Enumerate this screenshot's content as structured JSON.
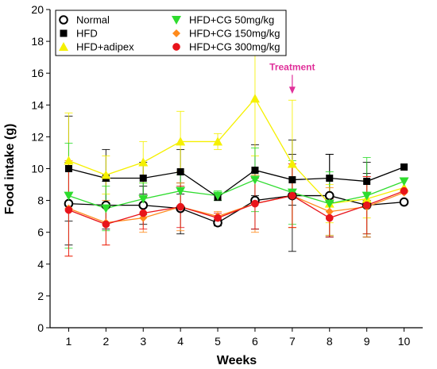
{
  "chart_data": {
    "type": "line",
    "xlabel": "Weeks",
    "ylabel": "Food intake (g)",
    "x": [
      1,
      2,
      3,
      4,
      5,
      6,
      7,
      8,
      9,
      10
    ],
    "x_ticks": [
      "1",
      "2",
      "3",
      "4",
      "5",
      "6",
      "7",
      "8",
      "9",
      "10"
    ],
    "ylim": [
      0,
      20
    ],
    "y_ticks": [
      "0",
      "2",
      "4",
      "6",
      "8",
      "10",
      "12",
      "14",
      "16",
      "18",
      "20"
    ],
    "grid": false,
    "legend_position": "top-left",
    "series": [
      {
        "name": "Normal",
        "color": "#000000",
        "marker": "open-circle",
        "values": [
          7.8,
          7.7,
          7.7,
          7.5,
          6.6,
          8.0,
          8.3,
          8.3,
          7.7,
          7.9
        ],
        "errors": [
          2.6,
          1.5,
          1.2,
          1.6,
          0.2,
          1.8,
          3.5,
          2.6,
          2.0,
          null
        ]
      },
      {
        "name": "HFD",
        "color": "#000000",
        "marker": "filled-square",
        "values": [
          10.0,
          9.4,
          9.4,
          9.8,
          8.2,
          9.9,
          9.3,
          9.4,
          9.2,
          10.1
        ],
        "errors": [
          3.3,
          1.8,
          1.0,
          1.4,
          0.2,
          1.6,
          1.6,
          1.5,
          1.2,
          null
        ]
      },
      {
        "name": "HFD+adipex",
        "color": "#f5f000",
        "marker": "triangle-up",
        "values": [
          10.5,
          9.6,
          10.4,
          11.7,
          11.7,
          14.4,
          10.3,
          7.8,
          8.1,
          8.8
        ],
        "errors": [
          3.0,
          1.2,
          1.3,
          1.9,
          0.5,
          3.6,
          4.0,
          1.2,
          1.2,
          null
        ]
      },
      {
        "name": "HFD+CG 50mg/kg",
        "color": "#2edc2e",
        "marker": "triangle-down",
        "values": [
          8.3,
          7.5,
          8.1,
          8.6,
          8.3,
          9.3,
          8.5,
          7.8,
          8.3,
          9.2
        ],
        "errors": [
          3.3,
          1.4,
          1.0,
          1.0,
          0.3,
          2.0,
          2.0,
          2.0,
          2.4,
          null
        ]
      },
      {
        "name": "HFD+CG 150mg/kg",
        "color": "#ff8a1c",
        "marker": "diamond",
        "values": [
          7.5,
          6.6,
          6.9,
          7.6,
          7.0,
          7.8,
          8.3,
          7.3,
          7.6,
          8.5
        ],
        "errors": [
          3.0,
          1.4,
          0.9,
          1.5,
          0.3,
          1.8,
          2.0,
          1.5,
          1.9,
          null
        ]
      },
      {
        "name": "HFD+CG 300mg/kg",
        "color": "#e8141b",
        "marker": "filled-circle",
        "values": [
          7.4,
          6.5,
          7.2,
          7.6,
          6.9,
          7.8,
          8.3,
          6.9,
          7.7,
          8.6
        ],
        "errors": [
          2.9,
          1.3,
          1.0,
          1.3,
          0.3,
          1.6,
          2.0,
          1.2,
          1.8,
          null
        ]
      }
    ],
    "annotation": {
      "text": "Treatment",
      "x": 7,
      "y": 14.7,
      "color": "#e0309a"
    }
  }
}
